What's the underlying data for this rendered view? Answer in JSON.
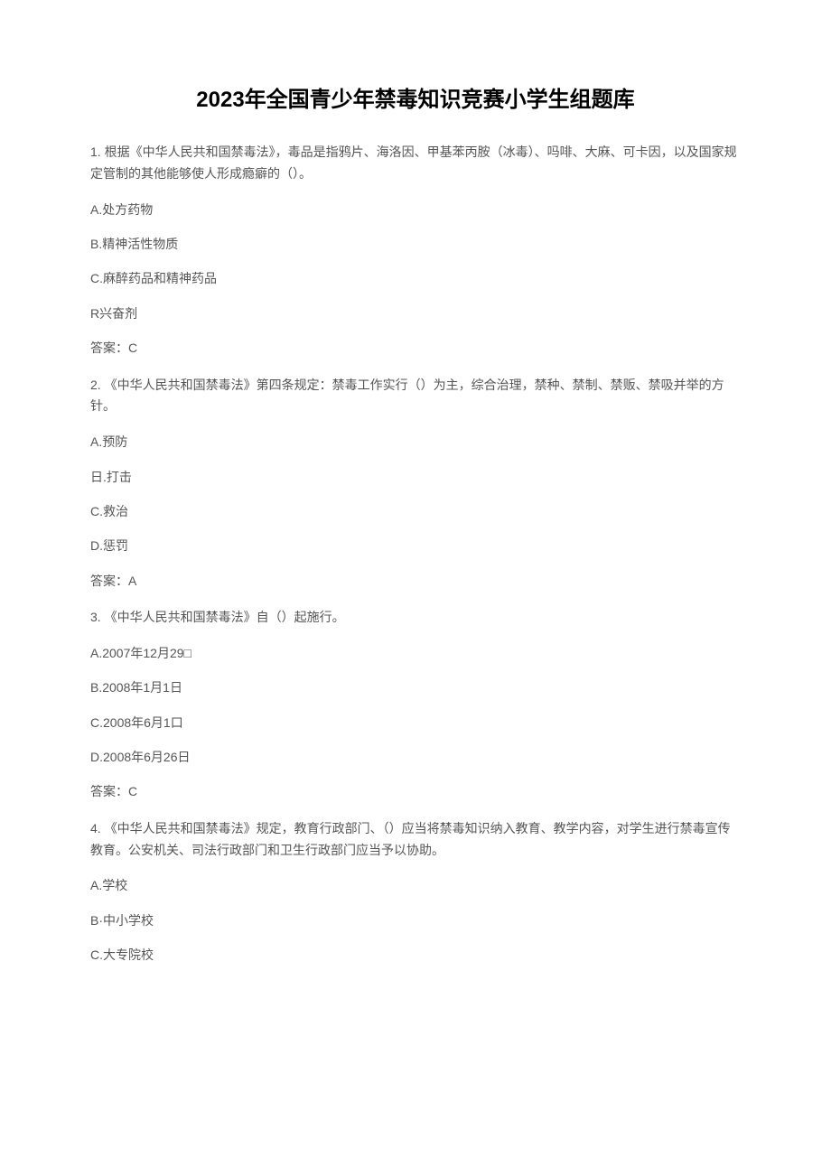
{
  "title": "2023年全国青少年禁毒知识竞赛小学生组题库",
  "questions": [
    {
      "num": "1.",
      "text": "根据《中华人民共和国禁毒法》，毒品是指鸦片、海洛因、甲基苯丙胺（冰毒）、吗啡、大麻、可卡因，以及国家规定管制的其他能够使人形成瘾癖的（）。",
      "options": [
        {
          "letter": "A.",
          "text": "处方药物"
        },
        {
          "letter": "B.",
          "text": "精神活性物质"
        },
        {
          "letter": "C.",
          "text": "麻醉药品和精神药品"
        },
        {
          "letter": "R",
          "text": "兴奋剂"
        }
      ],
      "answer_label": "答案：",
      "answer_value": "C"
    },
    {
      "num": "2.",
      "text": "《中华人民共和国禁毒法》第四条规定：禁毒工作实行（）为主，综合治理，禁种、禁制、禁贩、禁吸并举的方针。",
      "options": [
        {
          "letter": "A.",
          "text": "预防"
        },
        {
          "letter": "日.",
          "text": "打击"
        },
        {
          "letter": "C.",
          "text": "救治"
        },
        {
          "letter": "D.",
          "text": "惩罚"
        }
      ],
      "answer_label": "答案：",
      "answer_value": "A"
    },
    {
      "num": "3.",
      "text": "《中华人民共和国禁毒法》自（）起施行。",
      "options": [
        {
          "letter": "A.",
          "text": "2007年12月29□"
        },
        {
          "letter": "B.",
          "text": "2008年1月1日"
        },
        {
          "letter": "C.",
          "text": "2008年6月1口"
        },
        {
          "letter": "D.",
          "text": "2008年6月26日"
        }
      ],
      "answer_label": "答案：",
      "answer_value": "C"
    },
    {
      "num": "4.",
      "text": "《中华人民共和国禁毒法》规定，教育行政部门、（）应当将禁毒知识纳入教育、教学内容，对学生进行禁毒宣传教育。公安机关、司法行政部门和卫生行政部门应当予以协助。",
      "options": [
        {
          "letter": "A.",
          "text": "学校"
        },
        {
          "letter": "B·",
          "text": "中小学校"
        },
        {
          "letter": "C.",
          "text": "大专院校"
        }
      ],
      "answer_label": "",
      "answer_value": ""
    }
  ]
}
